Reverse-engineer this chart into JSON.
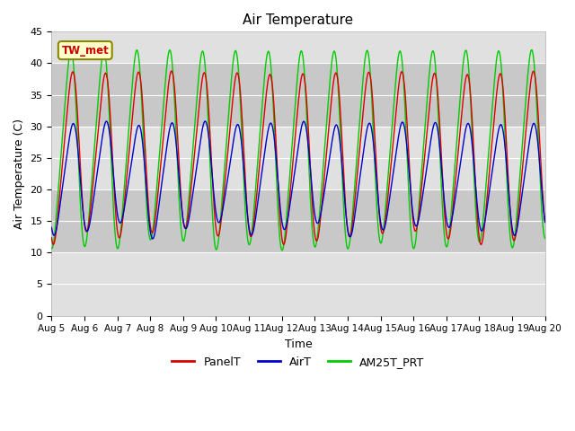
{
  "title": "Air Temperature",
  "xlabel": "Time",
  "ylabel": "Air Temperature (C)",
  "ylim": [
    0,
    45
  ],
  "n_days": 15,
  "x_tick_labels": [
    "Aug 5",
    "Aug 6",
    "Aug 7",
    "Aug 8",
    "Aug 9",
    "Aug 10",
    "Aug 11",
    "Aug 12",
    "Aug 13",
    "Aug 14",
    "Aug 15",
    "Aug 16",
    "Aug 17",
    "Aug 18",
    "Aug 19",
    "Aug 20"
  ],
  "annotation_text": "TW_met",
  "annotation_bg": "#ffffcc",
  "annotation_text_color": "#cc0000",
  "annotation_border_color": "#888800",
  "panel_color": "#dd0000",
  "air_color": "#0000cc",
  "am25_color": "#00cc00",
  "bg_color": "#c8c8c8",
  "light_band_color": "#e0e0e0",
  "legend_labels": [
    "PanelT",
    "AirT",
    "AM25T_PRT"
  ],
  "panel_min": 12.5,
  "panel_max": 38.5,
  "panel_phase": 0.35,
  "air_min": 13.5,
  "air_max": 30.5,
  "air_phase": 0.37,
  "am25_min": 11.0,
  "am25_max": 42.0,
  "am25_phase": 0.3,
  "n_pts": 720
}
